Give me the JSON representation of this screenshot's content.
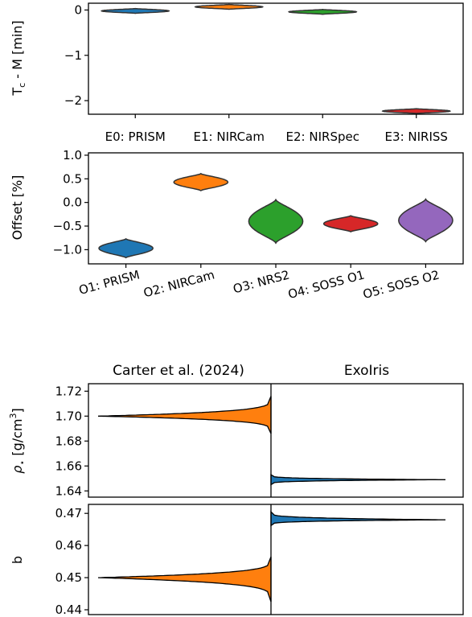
{
  "chart_data": [
    {
      "type": "violin",
      "panel": "timing",
      "ylabel_main": "T",
      "ylabel_sub": "c",
      "ylabel_rest": " - M [min]",
      "categories": [
        "E0: PRISM",
        "E1: NIRCam",
        "E2: NIRSpec",
        "E3: NIRISS"
      ],
      "centers": [
        -0.02,
        0.07,
        -0.04,
        -2.23
      ],
      "spreads": [
        0.03,
        0.05,
        0.04,
        0.02
      ],
      "colors": [
        "#1f77b4",
        "#ff7f0e",
        "#2ca02c",
        "#d62728"
      ],
      "ylim": [
        -2.3,
        0.15
      ],
      "yticks": [
        0,
        -1,
        -2
      ],
      "ytick_labels": [
        "0",
        "−1",
        "−2"
      ]
    },
    {
      "type": "violin",
      "panel": "offset",
      "ylabel": "Offset [%]",
      "categories": [
        "O1: PRISM",
        "O2: NIRCam",
        "O3: NRS2",
        "O4: SOSS O1",
        "O5: SOSS O2"
      ],
      "centers": [
        -0.97,
        0.43,
        -0.4,
        -0.45,
        -0.38
      ],
      "spreads": [
        0.2,
        0.18,
        0.46,
        0.17,
        0.45
      ],
      "colors": [
        "#1f77b4",
        "#ff7f0e",
        "#2ca02c",
        "#d62728",
        "#9467bd"
      ],
      "ylim": [
        -1.3,
        1.05
      ],
      "yticks": [
        1.0,
        0.5,
        0.0,
        -0.5,
        -1.0
      ],
      "ytick_labels": [
        "1.0",
        "0.5",
        "0.0",
        "−0.5",
        "−1.0"
      ]
    },
    {
      "type": "half-violin",
      "panel": "rho",
      "ylabel": "ρ",
      "ylabel_sub": "⋆",
      "ylabel_rest": " [g/cm",
      "ylabel_sup": "3",
      "ylabel_end": "]",
      "columns": [
        "Carter et al. (2024)",
        "ExoIris"
      ],
      "series": [
        {
          "name": "Carter et al. (2024)",
          "peak": 1.7,
          "low": 1.686,
          "high": 1.716,
          "color": "#ff7f0e"
        },
        {
          "name": "ExoIris",
          "peak": 1.649,
          "low": 1.645,
          "high": 1.653,
          "color": "#1f77b4"
        }
      ],
      "ylim": [
        1.635,
        1.726
      ],
      "yticks": [
        1.72,
        1.7,
        1.68,
        1.66,
        1.64
      ],
      "ytick_labels": [
        "1.72",
        "1.70",
        "1.68",
        "1.66",
        "1.64"
      ]
    },
    {
      "type": "half-violin",
      "panel": "b",
      "ylabel": "b",
      "series": [
        {
          "name": "Carter et al. (2024)",
          "peak": 0.45,
          "low": 0.4425,
          "high": 0.4565,
          "color": "#ff7f0e"
        },
        {
          "name": "ExoIris",
          "peak": 0.468,
          "low": 0.4662,
          "high": 0.4705,
          "color": "#1f77b4"
        }
      ],
      "ylim": [
        0.4385,
        0.4728
      ],
      "yticks": [
        0.47,
        0.46,
        0.45,
        0.44
      ],
      "ytick_labels": [
        "0.47",
        "0.46",
        "0.45",
        "0.44"
      ]
    }
  ]
}
